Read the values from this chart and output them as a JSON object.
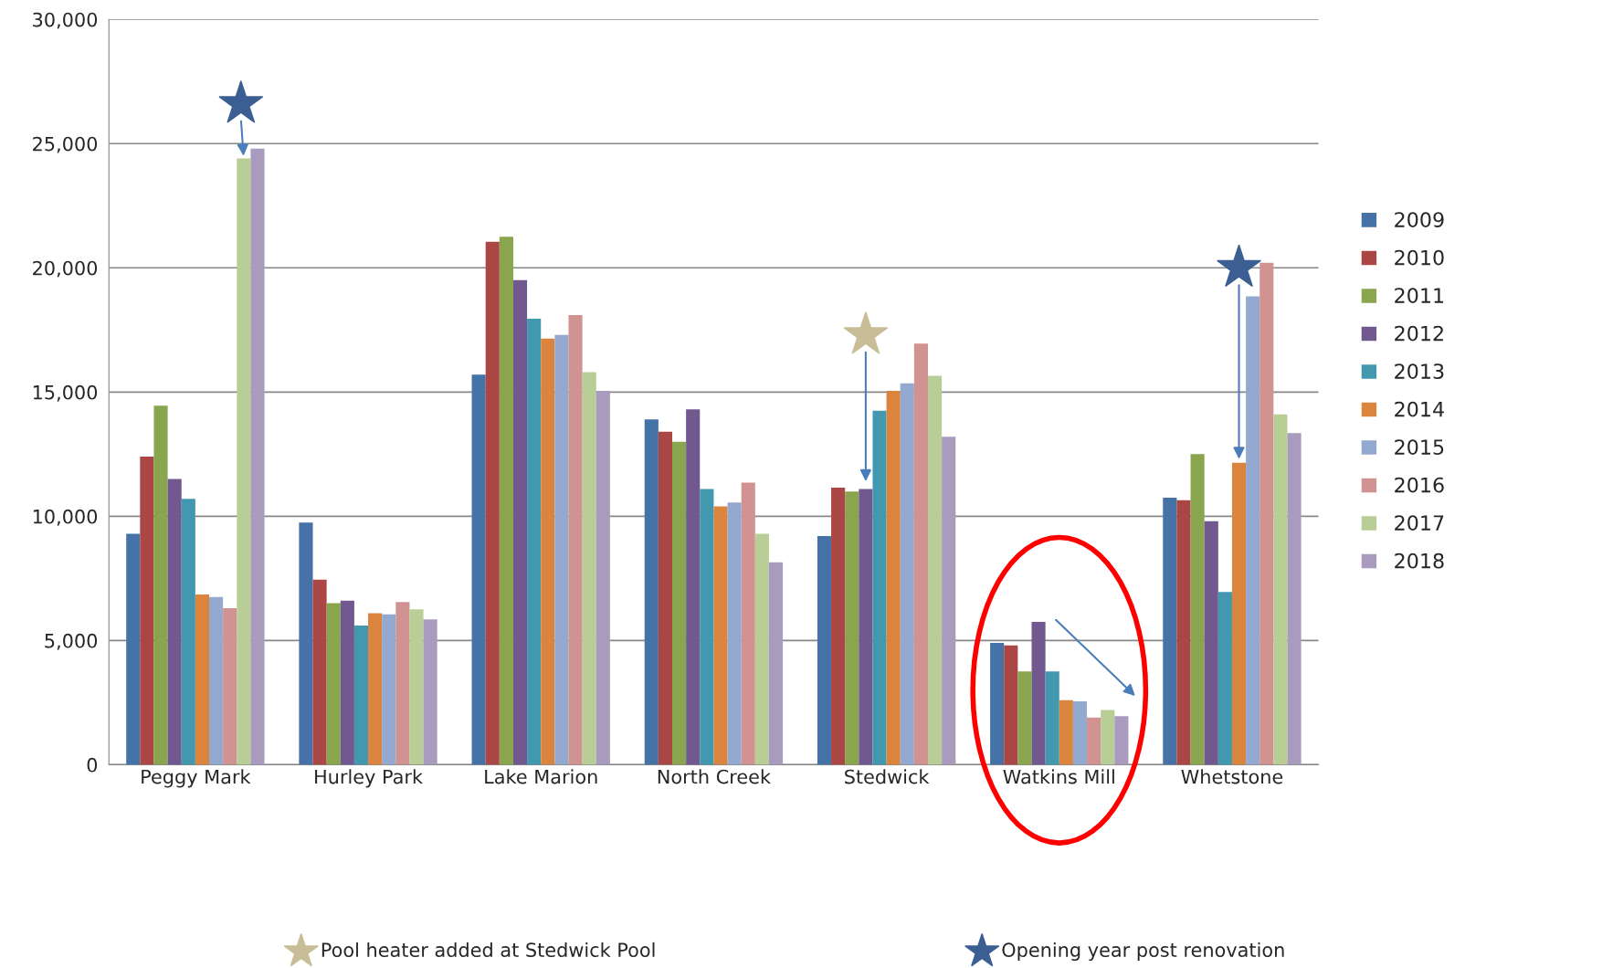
{
  "chart_data": {
    "type": "bar",
    "categories": [
      "Peggy Mark",
      "Hurley Park",
      "Lake Marion",
      "North Creek",
      "Stedwick",
      "Watkins Mill",
      "Whetstone"
    ],
    "series": [
      {
        "name": "2009",
        "color": "#4572a7",
        "values": [
          9300,
          9750,
          15700,
          13900,
          9200,
          4900,
          10750
        ]
      },
      {
        "name": "2010",
        "color": "#aa4643",
        "values": [
          12400,
          7450,
          21050,
          13400,
          11150,
          4800,
          10650
        ]
      },
      {
        "name": "2011",
        "color": "#89a54e",
        "values": [
          14450,
          6500,
          21250,
          13000,
          11000,
          3750,
          12500
        ]
      },
      {
        "name": "2012",
        "color": "#71588f",
        "values": [
          11500,
          6600,
          19500,
          14300,
          11100,
          5750,
          9800
        ]
      },
      {
        "name": "2013",
        "color": "#4198af",
        "values": [
          10700,
          5600,
          17950,
          11100,
          14250,
          3750,
          6950
        ]
      },
      {
        "name": "2014",
        "color": "#db843d",
        "values": [
          6850,
          6100,
          17150,
          10400,
          15050,
          2600,
          12150
        ]
      },
      {
        "name": "2015",
        "color": "#93a9cf",
        "values": [
          6750,
          6050,
          17300,
          10550,
          15350,
          2550,
          18850
        ]
      },
      {
        "name": "2016",
        "color": "#d19392",
        "values": [
          6300,
          6550,
          18100,
          11350,
          16950,
          1900,
          20200
        ]
      },
      {
        "name": "2017",
        "color": "#b9cd96",
        "values": [
          24400,
          6250,
          15800,
          9300,
          15650,
          2200,
          14100
        ]
      },
      {
        "name": "2018",
        "color": "#a99bbd",
        "values": [
          24800,
          5850,
          15050,
          8150,
          13200,
          1950,
          13350
        ]
      }
    ],
    "ylim": [
      0,
      30000
    ],
    "yticks": [
      0,
      {
        "value": 5000,
        "label": "5,000"
      },
      {
        "value": 10000,
        "label": "10,000"
      },
      {
        "value": 15000,
        "label": "15,000"
      },
      {
        "value": 20000,
        "label": "20,000"
      },
      {
        "value": 25000,
        "label": "25,000"
      },
      {
        "value": 30000,
        "label": "30,000"
      }
    ],
    "grid": "y",
    "legend": "right",
    "annotations": [
      "Pool heater added at Stedwick Pool",
      "Opening year post renovation"
    ]
  }
}
